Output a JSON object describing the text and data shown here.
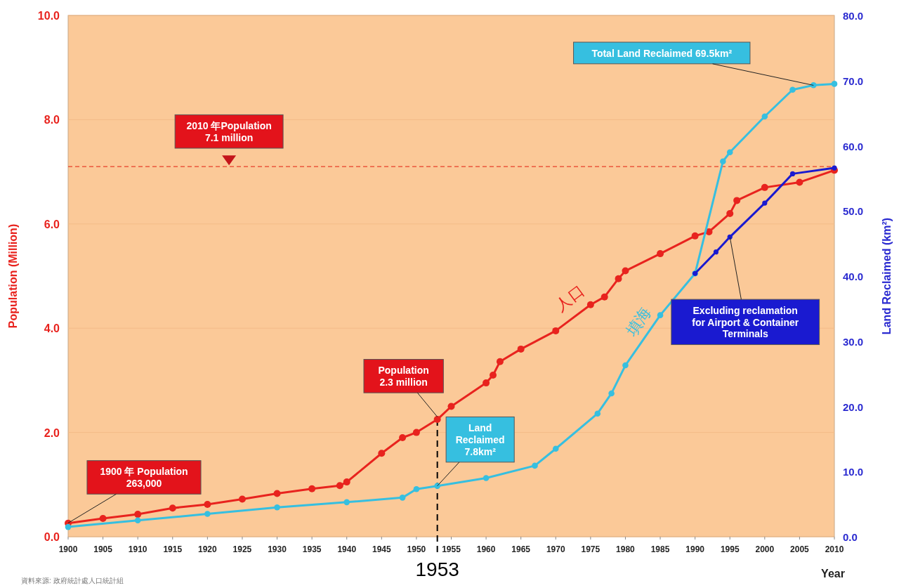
{
  "chart_data": {
    "type": "line",
    "xlabel": "Year",
    "ylabel": "Population (Million)",
    "y2label": "Land Reclaimed (km²)",
    "xlim": [
      1900,
      2010
    ],
    "xticks": [
      1900,
      1905,
      1910,
      1915,
      1920,
      1925,
      1930,
      1935,
      1940,
      1945,
      1950,
      1955,
      1960,
      1965,
      1970,
      1975,
      1980,
      1985,
      1990,
      1995,
      2000,
      2005,
      2010
    ],
    "ylim": [
      0,
      10
    ],
    "yticks": [
      {
        "value": 0,
        "label": "0.0"
      },
      {
        "value": 2,
        "label": "2.0"
      },
      {
        "value": 4,
        "label": "4.0"
      },
      {
        "value": 6,
        "label": "6.0"
      },
      {
        "value": 8,
        "label": "8.0"
      },
      {
        "value": 10,
        "label": "10.0"
      }
    ],
    "y2lim": [
      0,
      80
    ],
    "y2ticks": [
      {
        "value": 0,
        "label": "0.0"
      },
      {
        "value": 10,
        "label": "10.0"
      },
      {
        "value": 20,
        "label": "20.0"
      },
      {
        "value": 30,
        "label": "30.0"
      },
      {
        "value": 40,
        "label": "40.0"
      },
      {
        "value": 50,
        "label": "50.0"
      },
      {
        "value": 60,
        "label": "60.0"
      },
      {
        "value": 70,
        "label": "70.0"
      },
      {
        "value": 80,
        "label": "80.0"
      }
    ],
    "grid": "y",
    "marker": "circle",
    "line_style": "solid",
    "series": [
      {
        "name": "人口",
        "color": "#e8231e",
        "x": [
          1900,
          1905,
          1910,
          1915,
          1920,
          1925,
          1930,
          1935,
          1939,
          1940,
          1945,
          1948,
          1950,
          1953,
          1955,
          1960,
          1961,
          1962,
          1965,
          1970,
          1975,
          1977,
          1979,
          1980,
          1985,
          1990,
          1992,
          1995,
          1996,
          2000,
          2005,
          2010
        ],
        "values": [
          0.26,
          0.35,
          0.43,
          0.55,
          0.62,
          0.72,
          0.83,
          0.92,
          0.98,
          1.05,
          1.6,
          1.9,
          2.0,
          2.25,
          2.5,
          2.95,
          3.1,
          3.36,
          3.6,
          3.95,
          4.45,
          4.6,
          4.95,
          5.1,
          5.43,
          5.77,
          5.85,
          6.2,
          6.45,
          6.7,
          6.8,
          7.03
        ]
      },
      {
        "name": "填海",
        "color": "#36bfe0",
        "axis": "y2",
        "x": [
          1900,
          1910,
          1920,
          1930,
          1940,
          1948,
          1950,
          1953,
          1960,
          1967,
          1970,
          1976,
          1978,
          1980,
          1985,
          1990,
          1994,
          1995,
          2000,
          2004,
          2007,
          2010
        ],
        "values": [
          1.5,
          2.5,
          3.5,
          4.5,
          5.3,
          6.0,
          7.3,
          7.8,
          9.0,
          10.9,
          13.5,
          18.9,
          22.0,
          26.3,
          34.0,
          40.4,
          57.6,
          59.0,
          64.5,
          68.6,
          69.3,
          69.5
        ]
      },
      {
        "color": "#1a1ad0",
        "axis": "y2",
        "x": [
          1990,
          1993,
          1995,
          2000,
          2004,
          2010
        ],
        "values": [
          40.4,
          43.7,
          46.0,
          51.2,
          55.7,
          56.6
        ]
      }
    ],
    "ref_lines": [
      {
        "axis": "y",
        "value": 7.1,
        "label": "2010 年Population\n7.1 million",
        "color": "#e8402a",
        "line_style": "dashed"
      },
      {
        "axis": "x",
        "value": 1953,
        "label": "1953",
        "color": "#000000",
        "line_style": "dashed"
      }
    ],
    "annotations": [
      {
        "text": "1900 年 Population\n263,000",
        "x": 1900,
        "y": 0.263
      },
      {
        "text": "Population\n2.3 million",
        "x": 1953,
        "y": 2.3
      },
      {
        "text": "Land\nReclaimed\n7.8km²",
        "x": 1953,
        "y": 0.975
      },
      {
        "text": "Total Land Reclaimed 69.5km²",
        "x": 2007,
        "y": 8.66
      },
      {
        "text": "Excluding reclamation\nfor Airport & Container\nTerminals",
        "x": 1995,
        "y": 5.75
      },
      "資料來源: 政府統計處人口統計組"
    ]
  }
}
